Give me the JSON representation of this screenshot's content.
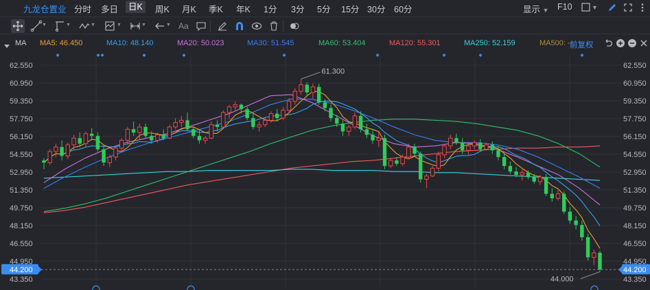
{
  "header": {
    "stock_name": "九龙仓置业",
    "periods": [
      "分时",
      "多日",
      "日K",
      "周K",
      "月K",
      "季K",
      "年K",
      "1分",
      "3分",
      "5分",
      "15分",
      "30分",
      "60分"
    ],
    "active_period": "日K",
    "display_label": "显示",
    "f10_label": "F10"
  },
  "toolbar": {
    "font_tool": "Aa",
    "icons": [
      "crosshair-icon",
      "line-draw-icon",
      "polyline-icon",
      "wave-icon",
      "measure-icon",
      "range-icon",
      "arrow-left-icon",
      "text-icon",
      "comment-icon",
      "pen-icon",
      "magnet-icon",
      "eye-icon",
      "trash-icon",
      "toggle-icon"
    ]
  },
  "legend": {
    "title": "MA",
    "fq_label": "前复权",
    "items": [
      {
        "label": "MA5: 46.450",
        "color": "#e8a030"
      },
      {
        "label": "MA10: 48.140",
        "color": "#3aa0f0"
      },
      {
        "label": "MA20: 50.023",
        "color": "#d070e0"
      },
      {
        "label": "MA30: 51.545",
        "color": "#3c7ef0"
      },
      {
        "label": "MA60: 53.404",
        "color": "#2ec26a"
      },
      {
        "label": "MA120: 55.301",
        "color": "#f05a5a"
      },
      {
        "label": "MA250: 52.159",
        "color": "#36d4e0"
      },
      {
        "label": "MA500: --",
        "color": "#b08a3a"
      }
    ]
  },
  "chart_data": {
    "type": "candlestick",
    "title": "九龙仓置业 日K",
    "y_axis": {
      "ticks": [
        "62.550",
        "60.950",
        "59.350",
        "57.750",
        "56.150",
        "54.550",
        "52.950",
        "51.350",
        "49.750",
        "48.150",
        "46.550",
        "44.950",
        "43.350"
      ],
      "range": [
        43.35,
        63.35
      ]
    },
    "high_marker": "61.300",
    "low_marker": "44.000",
    "last_price": "44.200",
    "colors": {
      "up": "#f04848",
      "down": "#2fcc5a",
      "bg": "#24262c",
      "grid": "#2f3238",
      "price_tag": "#3c8cf0"
    },
    "candles": [
      [
        54.0,
        54.2,
        53.2,
        53.8
      ],
      [
        53.8,
        55.0,
        53.6,
        54.8
      ],
      [
        54.8,
        55.5,
        54.3,
        55.2
      ],
      [
        55.2,
        55.8,
        54.0,
        54.4
      ],
      [
        54.4,
        55.6,
        54.1,
        55.4
      ],
      [
        55.4,
        56.3,
        55.0,
        56.0
      ],
      [
        56.0,
        56.5,
        55.2,
        55.5
      ],
      [
        55.5,
        56.6,
        55.2,
        56.4
      ],
      [
        56.4,
        56.9,
        55.8,
        56.2
      ],
      [
        56.2,
        56.5,
        54.8,
        55.0
      ],
      [
        55.0,
        55.4,
        53.5,
        53.8
      ],
      [
        53.8,
        54.5,
        53.4,
        54.3
      ],
      [
        54.3,
        55.3,
        54.0,
        55.1
      ],
      [
        55.1,
        56.0,
        54.8,
        55.8
      ],
      [
        55.8,
        57.0,
        55.4,
        56.8
      ],
      [
        56.8,
        57.5,
        56.2,
        56.5
      ],
      [
        56.5,
        57.3,
        55.8,
        57.0
      ],
      [
        57.0,
        57.3,
        56.0,
        56.2
      ],
      [
        56.2,
        56.6,
        55.5,
        55.8
      ],
      [
        55.8,
        56.5,
        55.6,
        56.3
      ],
      [
        56.3,
        56.8,
        55.8,
        56.0
      ],
      [
        56.0,
        57.2,
        55.9,
        57.0
      ],
      [
        57.0,
        57.8,
        56.8,
        57.4
      ],
      [
        57.4,
        58.0,
        57.0,
        57.6
      ],
      [
        57.6,
        58.3,
        56.6,
        56.8
      ],
      [
        56.8,
        57.0,
        56.0,
        56.2
      ],
      [
        56.2,
        56.8,
        55.5,
        55.8
      ],
      [
        55.8,
        56.2,
        55.5,
        56.0
      ],
      [
        56.0,
        57.5,
        55.9,
        57.2
      ],
      [
        57.2,
        57.6,
        56.6,
        57.0
      ],
      [
        57.0,
        58.5,
        56.8,
        58.3
      ],
      [
        58.3,
        59.0,
        57.7,
        58.8
      ],
      [
        58.8,
        59.3,
        58.4,
        59.0
      ],
      [
        59.0,
        59.1,
        58.2,
        58.6
      ],
      [
        58.6,
        58.8,
        57.6,
        57.8
      ],
      [
        57.8,
        58.2,
        56.8,
        57.0
      ],
      [
        57.0,
        57.5,
        56.6,
        57.2
      ],
      [
        57.2,
        57.9,
        57.0,
        57.6
      ],
      [
        57.6,
        58.4,
        57.4,
        58.2
      ],
      [
        58.2,
        58.6,
        57.5,
        57.8
      ],
      [
        57.8,
        58.8,
        57.6,
        58.5
      ],
      [
        58.5,
        59.6,
        58.3,
        59.3
      ],
      [
        59.3,
        60.5,
        59.0,
        60.2
      ],
      [
        60.2,
        61.3,
        59.9,
        60.8
      ],
      [
        60.8,
        61.0,
        59.8,
        60.1
      ],
      [
        60.1,
        60.9,
        59.5,
        60.6
      ],
      [
        60.6,
        60.9,
        59.0,
        59.2
      ],
      [
        59.2,
        59.5,
        58.4,
        58.7
      ],
      [
        58.7,
        59.0,
        57.5,
        57.8
      ],
      [
        57.8,
        58.1,
        57.0,
        57.3
      ],
      [
        57.3,
        57.6,
        56.2,
        56.6
      ],
      [
        56.6,
        57.2,
        56.2,
        57.0
      ],
      [
        57.0,
        58.3,
        56.8,
        58.0
      ],
      [
        58.0,
        58.4,
        56.5,
        56.8
      ],
      [
        56.8,
        57.3,
        56.0,
        56.3
      ],
      [
        56.3,
        56.8,
        55.5,
        55.8
      ],
      [
        55.8,
        56.5,
        55.2,
        56.0
      ],
      [
        56.0,
        56.3,
        53.2,
        53.5
      ],
      [
        53.5,
        54.2,
        53.3,
        54.0
      ],
      [
        54.0,
        54.3,
        53.5,
        53.7
      ],
      [
        53.7,
        54.5,
        53.5,
        54.3
      ],
      [
        54.3,
        55.5,
        54.1,
        55.2
      ],
      [
        55.2,
        55.5,
        54.4,
        54.6
      ],
      [
        54.6,
        54.8,
        52.0,
        52.3
      ],
      [
        52.3,
        52.8,
        51.5,
        52.6
      ],
      [
        52.6,
        53.5,
        52.5,
        53.3
      ],
      [
        53.3,
        54.8,
        53.0,
        54.5
      ],
      [
        54.5,
        55.5,
        54.2,
        55.3
      ],
      [
        55.3,
        56.3,
        55.0,
        56.0
      ],
      [
        56.0,
        56.4,
        55.4,
        55.6
      ],
      [
        55.6,
        56.0,
        54.6,
        54.9
      ],
      [
        54.9,
        55.5,
        54.5,
        55.3
      ],
      [
        55.3,
        55.8,
        55.0,
        55.6
      ],
      [
        55.6,
        55.9,
        54.8,
        55.0
      ],
      [
        55.0,
        55.6,
        54.9,
        55.4
      ],
      [
        55.4,
        55.7,
        54.6,
        54.9
      ],
      [
        54.9,
        55.3,
        54.0,
        54.3
      ],
      [
        54.3,
        54.6,
        53.2,
        53.5
      ],
      [
        53.5,
        53.9,
        52.8,
        53.0
      ],
      [
        53.0,
        53.4,
        52.5,
        52.7
      ],
      [
        52.7,
        53.2,
        52.2,
        52.9
      ],
      [
        52.9,
        53.1,
        52.3,
        52.5
      ],
      [
        52.5,
        52.8,
        51.9,
        52.1
      ],
      [
        52.1,
        52.7,
        51.8,
        52.5
      ],
      [
        52.5,
        52.8,
        50.8,
        51.0
      ],
      [
        51.0,
        51.5,
        50.3,
        50.6
      ],
      [
        50.6,
        51.3,
        50.4,
        51.0
      ],
      [
        51.0,
        51.2,
        49.2,
        49.4
      ],
      [
        49.4,
        49.8,
        48.3,
        48.6
      ],
      [
        48.6,
        49.0,
        47.8,
        48.2
      ],
      [
        48.2,
        48.6,
        46.8,
        47.1
      ],
      [
        47.1,
        47.4,
        45.0,
        45.3
      ],
      [
        45.3,
        46.0,
        44.6,
        45.7
      ],
      [
        45.7,
        45.9,
        44.0,
        44.2
      ]
    ],
    "moving_averages": [
      {
        "name": "MA120",
        "values": [
          49.3,
          49.5,
          49.8,
          50.2,
          50.6,
          51.0,
          51.4,
          51.8,
          52.1,
          52.4,
          52.7,
          53.0,
          53.3,
          53.5,
          53.7,
          53.9,
          54.0,
          54.2,
          54.4,
          54.6,
          54.8,
          54.9,
          55.0,
          55.1,
          55.1,
          55.2,
          55.2,
          55.3
        ]
      },
      {
        "name": "MA250",
        "values": [
          52.4,
          52.5,
          52.6,
          52.7,
          52.8,
          52.9,
          53.0,
          53.0,
          53.1,
          53.1,
          53.1,
          53.1,
          53.2,
          53.2,
          53.1,
          53.1,
          53.1,
          53.0,
          53.0,
          52.9,
          52.9,
          52.8,
          52.7,
          52.6,
          52.5,
          52.4,
          52.3,
          52.2
        ]
      },
      {
        "name": "MA60",
        "values": [
          49.4,
          49.7,
          50.1,
          50.6,
          51.2,
          51.8,
          52.4,
          53.0,
          53.6,
          54.2,
          54.8,
          55.5,
          56.1,
          56.7,
          57.1,
          57.4,
          57.6,
          57.7,
          57.7,
          57.6,
          57.5,
          57.3,
          57.0,
          56.7,
          56.2,
          55.5,
          54.6,
          53.4
        ]
      },
      {
        "name": "MA30",
        "values": [
          51.5,
          52.5,
          53.4,
          54.2,
          54.9,
          55.5,
          56.0,
          56.5,
          57.0,
          57.5,
          58.2,
          59.0,
          59.5,
          59.5,
          59.1,
          58.5,
          57.8,
          57.0,
          56.3,
          55.8,
          55.6,
          55.6,
          55.4,
          55.0,
          54.3,
          53.4,
          52.5,
          51.5
        ]
      },
      {
        "name": "MA20",
        "values": [
          52.0,
          53.2,
          54.2,
          55.0,
          55.6,
          56.0,
          56.4,
          57.0,
          57.6,
          58.2,
          59.0,
          59.8,
          59.9,
          59.2,
          58.2,
          57.2,
          56.2,
          55.5,
          55.2,
          55.3,
          55.6,
          55.5,
          55.0,
          54.3,
          53.5,
          52.7,
          51.5,
          50.0
        ]
      }
    ]
  }
}
